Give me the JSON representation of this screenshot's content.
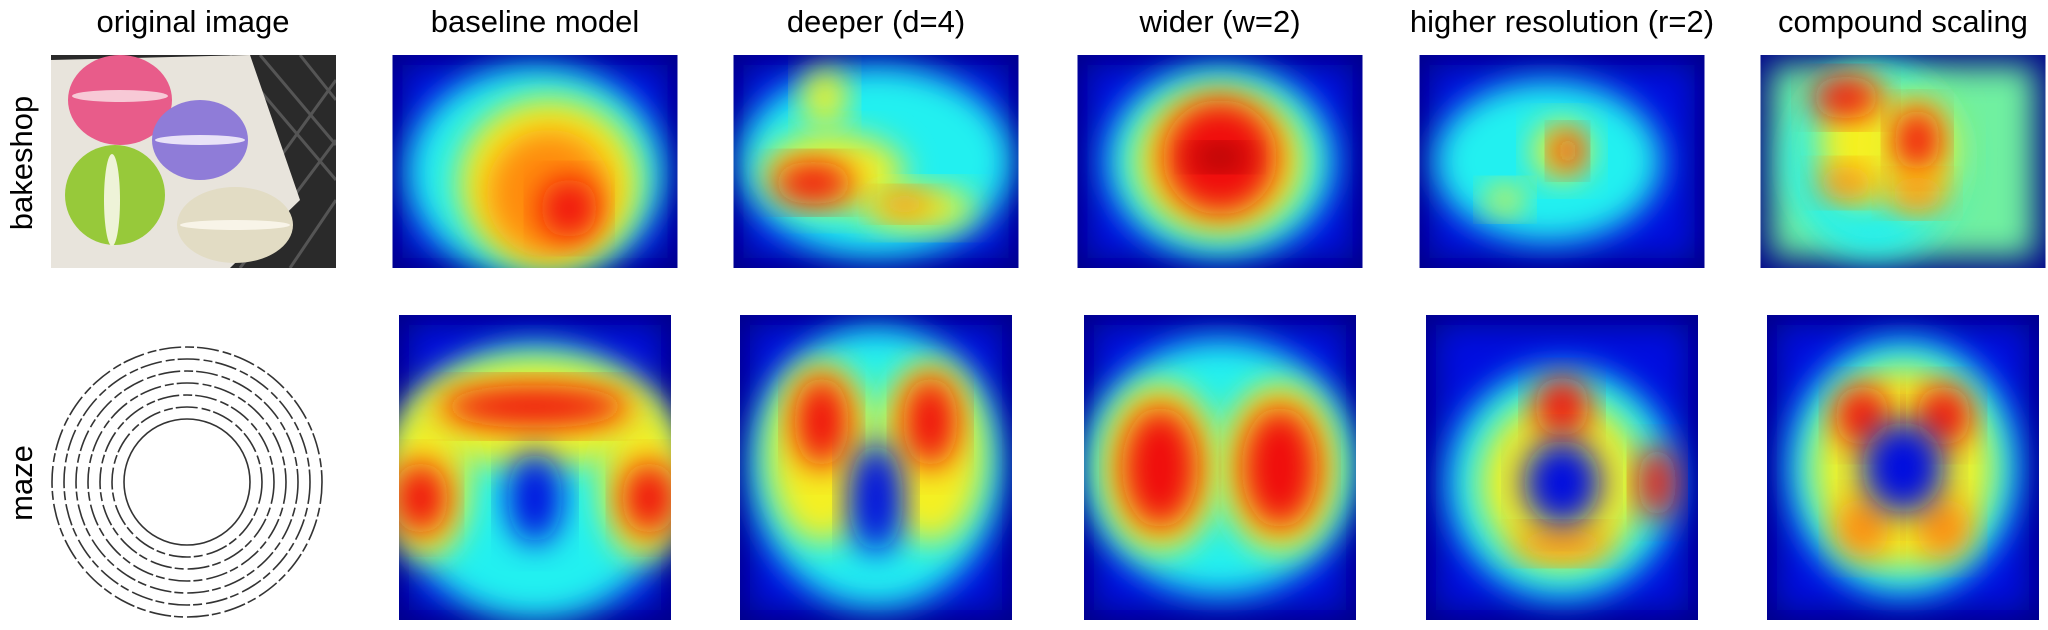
{
  "columns": [
    "original image",
    "baseline model",
    "deeper (d=4)",
    "wider (w=2)",
    "higher resolution (r=2)",
    "compound scaling"
  ],
  "rows": [
    "bakeshop",
    "maze"
  ]
}
